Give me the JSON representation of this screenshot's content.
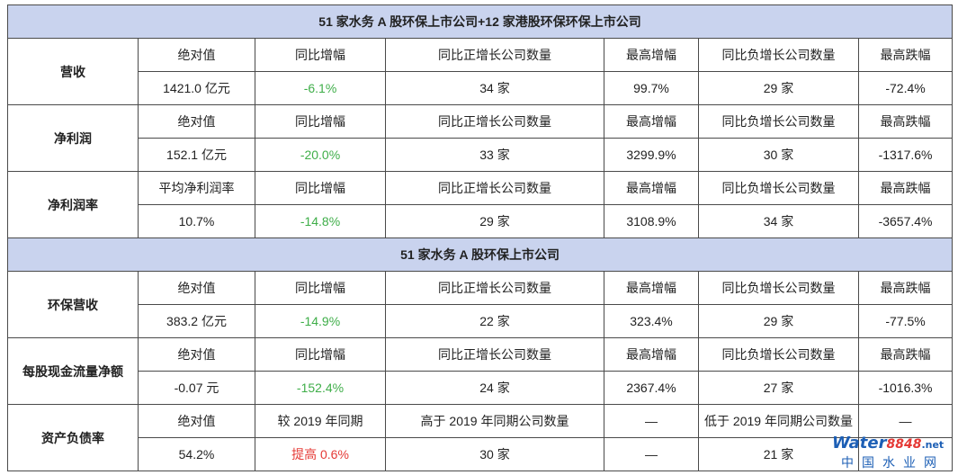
{
  "section1": {
    "title": "51 家水务 A 股环保上市公司+12 家港股环保环保上市公司",
    "rows": [
      {
        "label": "营收",
        "headers": [
          "绝对值",
          "同比增幅",
          "同比正增长公司数量",
          "最高增幅",
          "同比负增长公司数量",
          "最高跌幅"
        ],
        "values": [
          "1421.0 亿元",
          "-6.1%",
          "34 家",
          "99.7%",
          "29 家",
          "-72.4%"
        ]
      },
      {
        "label": "净利润",
        "headers": [
          "绝对值",
          "同比增幅",
          "同比正增长公司数量",
          "最高增幅",
          "同比负增长公司数量",
          "最高跌幅"
        ],
        "values": [
          "152.1 亿元",
          "-20.0%",
          "33 家",
          "3299.9%",
          "30 家",
          "-1317.6%"
        ]
      },
      {
        "label": "净利润率",
        "headers": [
          "平均净利润率",
          "同比增幅",
          "同比正增长公司数量",
          "最高增幅",
          "同比负增长公司数量",
          "最高跌幅"
        ],
        "values": [
          "10.7%",
          "-14.8%",
          "29 家",
          "3108.9%",
          "34 家",
          "-3657.4%"
        ]
      }
    ]
  },
  "section2": {
    "title": "51 家水务 A 股环保上市公司",
    "rows": [
      {
        "label": "环保营收",
        "headers": [
          "绝对值",
          "同比增幅",
          "同比正增长公司数量",
          "最高增幅",
          "同比负增长公司数量",
          "最高跌幅"
        ],
        "values": [
          "383.2 亿元",
          "-14.9%",
          "22 家",
          "323.4%",
          "29 家",
          "-77.5%"
        ]
      },
      {
        "label": "每股现金流量净额",
        "headers": [
          "绝对值",
          "同比增幅",
          "同比正增长公司数量",
          "最高增幅",
          "同比负增长公司数量",
          "最高跌幅"
        ],
        "values": [
          "-0.07 元",
          "-152.4%",
          "24 家",
          "2367.4%",
          "27 家",
          "-1016.3%"
        ]
      },
      {
        "label": "资产负债率",
        "headers": [
          "绝对值",
          "较 2019 年同期",
          "高于 2019 年同期公司数量",
          "—",
          "低于 2019 年同期公司数量",
          "—"
        ],
        "values": [
          "54.2%",
          "提高 0.6%",
          "30 家",
          "—",
          "21 家",
          ""
        ]
      }
    ]
  },
  "colors": {
    "section_bg": "#c9d3ee",
    "decrease": "#3fae49",
    "increase": "#e53935",
    "border": "#4a4a4a"
  },
  "logo": {
    "brand": "Water",
    "number": "8848",
    "suffix": ".net",
    "cn": "中国水业网"
  }
}
